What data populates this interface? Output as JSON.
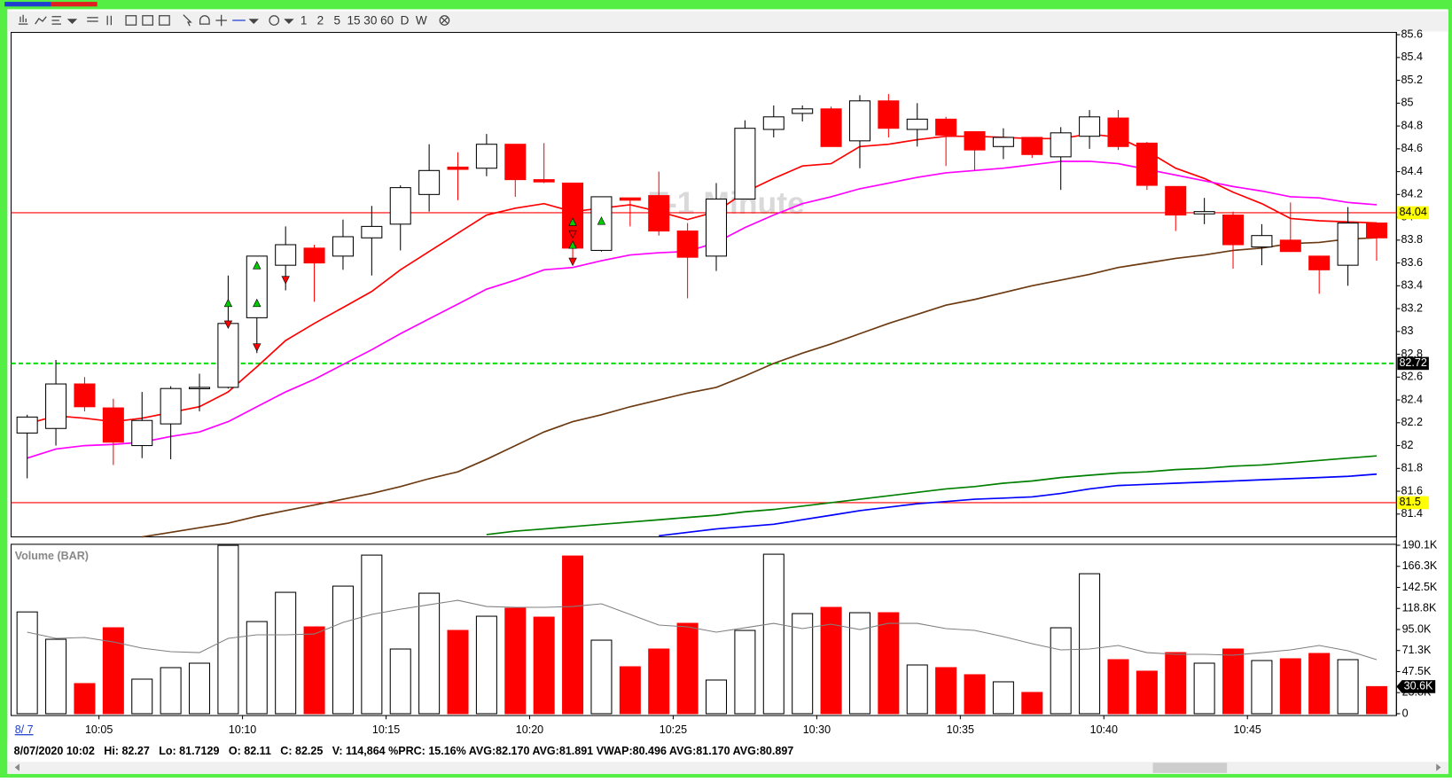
{
  "toolbar": {
    "intervals": [
      "1",
      "2",
      "5",
      "15",
      "30",
      "60",
      "D",
      "W"
    ]
  },
  "date_label": "8/ 7",
  "status_bar": "8/07/2020 10:02   Hi: 82.27   Lo: 81.7129   O: 82.11   C: 82.25   V: 114,864 %PRC: 15.16% AVG:82.170 AVG:81.891 VWAP:80.496 AVG:81.170 AVG:80.897",
  "chart_data": [
    {
      "type": "candlestick",
      "watermark": "T-1 Minute",
      "x": [
        2.5,
        3.5,
        4.5,
        5.5,
        6.5,
        7.5,
        8.5,
        9.5,
        10.5,
        11.5,
        12.5,
        13.5,
        14.5,
        15.5,
        16.5,
        17.5,
        18.5,
        19.5,
        20.5,
        21.5,
        22.5,
        23.5,
        24.5,
        25.5,
        26.5,
        27.5,
        28.5,
        29.5,
        30.5,
        31.5,
        32.5,
        33.5,
        34.5,
        35.5,
        36.5,
        37.5,
        38.5,
        39.5,
        40.5,
        41.5,
        42.5,
        43.5,
        44.5,
        45.5,
        46.5,
        47.5,
        48.5,
        49.5
      ],
      "open": [
        82.11,
        82.15,
        82.54,
        82.33,
        82.0,
        82.19,
        82.5,
        82.51,
        83.12,
        83.58,
        83.73,
        83.66,
        83.82,
        83.94,
        84.2,
        84.44,
        84.43,
        84.64,
        84.33,
        84.3,
        83.71,
        84.17,
        84.19,
        83.88,
        83.66,
        84.16,
        84.77,
        84.91,
        84.95,
        84.67,
        85.02,
        84.77,
        84.86,
        84.75,
        84.62,
        84.7,
        84.53,
        84.71,
        84.87,
        84.65,
        84.27,
        84.03,
        84.02,
        83.74,
        83.8,
        83.66,
        83.58,
        83.95
      ],
      "high": [
        82.27,
        82.75,
        82.6,
        82.41,
        82.47,
        82.52,
        82.63,
        83.49,
        83.66,
        83.92,
        83.76,
        83.98,
        84.1,
        84.28,
        84.64,
        84.57,
        84.73,
        84.64,
        84.65,
        84.3,
        84.18,
        84.17,
        84.4,
        83.95,
        84.3,
        84.85,
        84.98,
        84.98,
        84.97,
        85.07,
        85.08,
        85.0,
        84.88,
        84.75,
        84.78,
        84.7,
        84.79,
        84.94,
        84.94,
        84.66,
        84.27,
        84.17,
        84.05,
        83.94,
        84.13,
        83.66,
        84.09,
        83.95
      ],
      "low": [
        81.7129,
        82.0,
        82.3,
        81.83,
        81.89,
        81.88,
        82.3,
        82.5,
        82.81,
        83.36,
        83.26,
        83.54,
        83.49,
        83.71,
        84.05,
        84.15,
        84.36,
        84.18,
        84.3,
        83.59,
        83.7,
        83.92,
        83.84,
        83.29,
        83.53,
        84.16,
        84.7,
        84.84,
        84.62,
        84.43,
        84.7,
        84.62,
        84.45,
        84.41,
        84.51,
        84.52,
        84.24,
        84.6,
        84.59,
        84.24,
        83.88,
        83.94,
        83.55,
        83.58,
        83.7,
        83.33,
        83.4,
        83.62
      ],
      "close": [
        82.25,
        82.54,
        82.34,
        82.03,
        82.22,
        82.5,
        82.51,
        83.07,
        83.66,
        83.76,
        83.6,
        83.83,
        83.92,
        84.26,
        84.41,
        84.42,
        84.64,
        84.33,
        84.31,
        83.73,
        84.18,
        84.15,
        83.88,
        83.65,
        84.16,
        84.78,
        84.88,
        84.95,
        84.62,
        85.02,
        84.78,
        84.86,
        84.72,
        84.59,
        84.7,
        84.55,
        84.74,
        84.88,
        84.62,
        84.28,
        84.02,
        84.05,
        83.76,
        83.84,
        83.7,
        83.54,
        83.95,
        83.82
      ],
      "up_color": "#ffffff",
      "down_color": "#ff0000",
      "xlim": [
        1.94,
        50.19
      ],
      "xticks": [
        {
          "value": 5,
          "label": "10:05"
        },
        {
          "value": 10,
          "label": "10:10"
        },
        {
          "value": 15,
          "label": "10:15"
        },
        {
          "value": 20,
          "label": "10:20"
        },
        {
          "value": 25,
          "label": "10:25"
        },
        {
          "value": 30,
          "label": "10:30"
        },
        {
          "value": 35,
          "label": "10:35"
        },
        {
          "value": 40,
          "label": "10:40"
        },
        {
          "value": 45,
          "label": "10:45"
        }
      ],
      "ylim": [
        81.2,
        85.62
      ],
      "yticks": [
        81.4,
        81.6,
        81.8,
        82,
        82.2,
        82.4,
        82.6,
        82.8,
        83,
        83.2,
        83.4,
        83.6,
        83.8,
        84,
        84.2,
        84.4,
        84.6,
        84.8,
        85,
        85.2,
        85.4,
        85.6
      ],
      "hlines": [
        {
          "value": 84.04,
          "color": "#ff0000",
          "label_background": "#ffff00"
        },
        {
          "value": 82.72,
          "color": "#00dd00",
          "style": "dashed",
          "label_background": "#000000"
        },
        {
          "value": 81.5,
          "color": "#ff0000",
          "label_background": "#ffff00"
        }
      ],
      "series": [
        {
          "color": "#ff0000",
          "values": [
            82.19,
            82.26,
            82.24,
            82.21,
            82.24,
            82.29,
            82.34,
            82.47,
            82.69,
            82.92,
            83.07,
            83.21,
            83.35,
            83.54,
            83.7,
            83.86,
            84.02,
            84.08,
            84.12,
            84.05,
            84.08,
            84.11,
            84.05,
            83.98,
            84.05,
            84.22,
            84.34,
            84.45,
            84.47,
            84.62,
            84.64,
            84.68,
            84.71,
            84.71,
            84.7,
            84.69,
            84.69,
            84.73,
            84.7,
            84.58,
            84.43,
            84.34,
            84.22,
            84.12,
            83.99,
            83.97,
            83.96,
            83.95
          ]
        },
        {
          "color": "#ff00ff",
          "values": [
            81.89,
            81.97,
            82.0,
            82.01,
            82.03,
            82.08,
            82.12,
            82.21,
            82.34,
            82.47,
            82.58,
            82.71,
            82.84,
            82.98,
            83.11,
            83.24,
            83.37,
            83.45,
            83.54,
            83.56,
            83.62,
            83.67,
            83.69,
            83.7,
            83.78,
            83.91,
            84.02,
            84.12,
            84.18,
            84.25,
            84.3,
            84.35,
            84.39,
            84.41,
            84.43,
            84.46,
            84.49,
            84.49,
            84.47,
            84.42,
            84.37,
            84.32,
            84.27,
            84.23,
            84.18,
            84.17,
            84.13,
            84.11
          ]
        },
        {
          "color": "#6b3a12",
          "values": [
            null,
            null,
            null,
            null,
            81.2,
            81.24,
            81.28,
            81.32,
            81.38,
            81.43,
            81.48,
            81.53,
            81.58,
            81.64,
            81.71,
            81.77,
            81.88,
            82.0,
            82.12,
            82.21,
            82.27,
            82.34,
            82.4,
            82.46,
            82.51,
            82.61,
            82.72,
            82.81,
            82.89,
            82.98,
            83.07,
            83.15,
            83.23,
            83.28,
            83.34,
            83.4,
            83.45,
            83.5,
            83.56,
            83.6,
            83.64,
            83.67,
            83.71,
            83.73,
            83.77,
            83.78,
            83.81,
            83.82
          ]
        },
        {
          "color": "#008000",
          "values": [
            null,
            null,
            null,
            null,
            null,
            null,
            null,
            null,
            null,
            null,
            null,
            null,
            null,
            null,
            null,
            null,
            81.22,
            81.25,
            81.27,
            81.29,
            81.31,
            81.33,
            81.35,
            81.37,
            81.39,
            81.42,
            81.44,
            81.47,
            81.5,
            81.53,
            81.56,
            81.59,
            81.62,
            81.64,
            81.67,
            81.69,
            81.72,
            81.74,
            81.76,
            81.77,
            81.79,
            81.8,
            81.82,
            81.83,
            81.85,
            81.87,
            81.89,
            81.91
          ]
        },
        {
          "color": "#0000ff",
          "values": [
            null,
            null,
            null,
            null,
            null,
            null,
            null,
            null,
            null,
            null,
            null,
            null,
            null,
            null,
            null,
            null,
            null,
            null,
            null,
            null,
            null,
            null,
            81.21,
            81.24,
            81.27,
            81.29,
            81.31,
            81.35,
            81.39,
            81.43,
            81.46,
            81.49,
            81.51,
            81.53,
            81.54,
            81.55,
            81.58,
            81.62,
            81.65,
            81.66,
            81.67,
            81.68,
            81.69,
            81.7,
            81.71,
            81.72,
            81.73,
            81.75
          ]
        }
      ],
      "signals_up": {
        "color": "#00cc00",
        "x": [
          9.5,
          10.5,
          10.5,
          21.5,
          21.5,
          22.5
        ],
        "values": [
          83.25,
          83.58,
          83.25,
          83.96,
          83.76,
          83.97
        ]
      },
      "signals_down": {
        "color": "#ff0000",
        "x": [
          9.5,
          10.5,
          11.5,
          21.5,
          21.5
        ],
        "values": [
          83.06,
          82.86,
          83.45,
          83.85,
          83.61
        ]
      }
    },
    {
      "type": "bar",
      "title": "Volume (BAR)",
      "values": [
        114864,
        84000,
        34000,
        97000,
        39000,
        52000,
        57000,
        190000,
        104000,
        137000,
        98000,
        144000,
        179000,
        73000,
        136000,
        94000,
        110000,
        119000,
        109000,
        178000,
        83000,
        53000,
        73000,
        102000,
        38000,
        94000,
        180000,
        113000,
        120000,
        114000,
        114000,
        55000,
        52000,
        44000,
        36000,
        24000,
        97000,
        158000,
        61000,
        48000,
        69000,
        57000,
        73000,
        60000,
        62000,
        68000,
        61000,
        30600
      ],
      "last_value_label": "30.6K",
      "ylim": [
        0,
        191200
      ],
      "yticks": [
        0,
        {
          "value": 23800,
          "label": "23.8K"
        },
        {
          "value": 47500,
          "label": "47.5K"
        },
        {
          "value": 71300,
          "label": "71.3K"
        },
        {
          "value": 95000,
          "label": "95.0K"
        },
        {
          "value": 118800,
          "label": "118.8K"
        },
        {
          "value": 142500,
          "label": "142.5K"
        },
        {
          "value": 166300,
          "label": "166.3K"
        },
        {
          "value": 190100,
          "label": "190.1K"
        }
      ],
      "series": [
        {
          "color": "#808080",
          "values": [
            92000,
            85000,
            86000,
            81000,
            74000,
            70000,
            69000,
            85000,
            89000,
            89000,
            90000,
            103000,
            112000,
            118000,
            123000,
            128000,
            121000,
            120000,
            120000,
            121000,
            124000,
            112000,
            100000,
            98000,
            92000,
            97000,
            102000,
            96000,
            101000,
            95000,
            102000,
            102000,
            96000,
            94000,
            87000,
            79000,
            72000,
            73000,
            77000,
            69000,
            67000,
            67000,
            66000,
            69000,
            72000,
            77000,
            71000,
            61000
          ]
        }
      ]
    }
  ]
}
